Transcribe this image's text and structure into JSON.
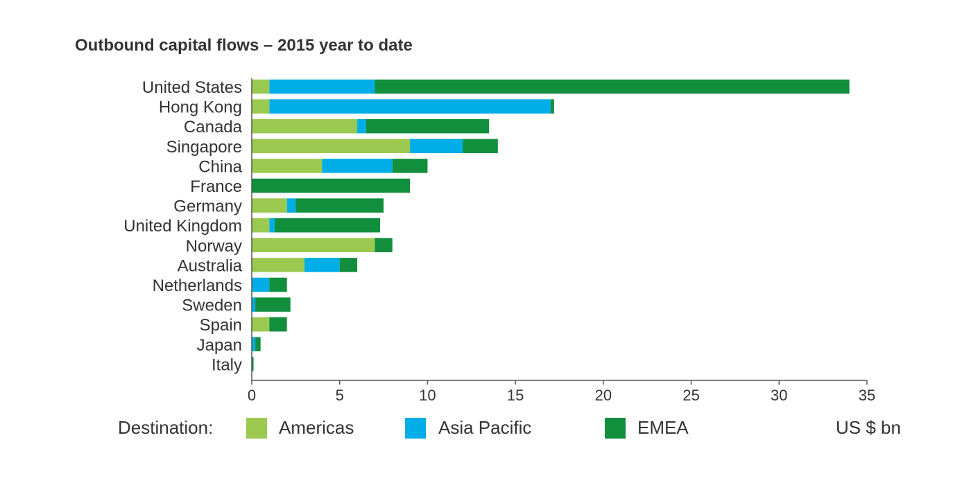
{
  "chart_data": {
    "type": "bar",
    "orientation": "horizontal",
    "stacked": true,
    "title": "Outbound capital flows – 2015 year to date",
    "categories": [
      "United States",
      "Hong Kong",
      "Canada",
      "Singapore",
      "China",
      "France",
      "Germany",
      "United Kingdom",
      "Norway",
      "Australia",
      "Netherlands",
      "Sweden",
      "Spain",
      "Japan",
      "Italy"
    ],
    "series": [
      {
        "name": "Americas",
        "color": "#9bc94f",
        "values": [
          1,
          1,
          6,
          9,
          4,
          0,
          2,
          1,
          7,
          3,
          0,
          0,
          1,
          0,
          0
        ]
      },
      {
        "name": "Asia Pacific",
        "color": "#00ade7",
        "values": [
          6,
          16,
          0.5,
          3,
          4,
          0,
          0.5,
          0.3,
          0,
          2,
          1,
          0.2,
          0,
          0.2,
          0
        ]
      },
      {
        "name": "EMEA",
        "color": "#118f3d",
        "values": [
          27,
          0.2,
          7,
          2,
          2,
          9,
          5,
          6,
          1,
          1,
          1,
          2,
          1,
          0.3,
          0.1
        ]
      }
    ],
    "x_ticks": [
      0,
      5,
      10,
      15,
      20,
      25,
      30,
      35
    ],
    "xlim": [
      0,
      35
    ],
    "legend_label": "Destination:",
    "unit_label": "US $ bn",
    "legend_position": "bottom",
    "grid": false
  }
}
